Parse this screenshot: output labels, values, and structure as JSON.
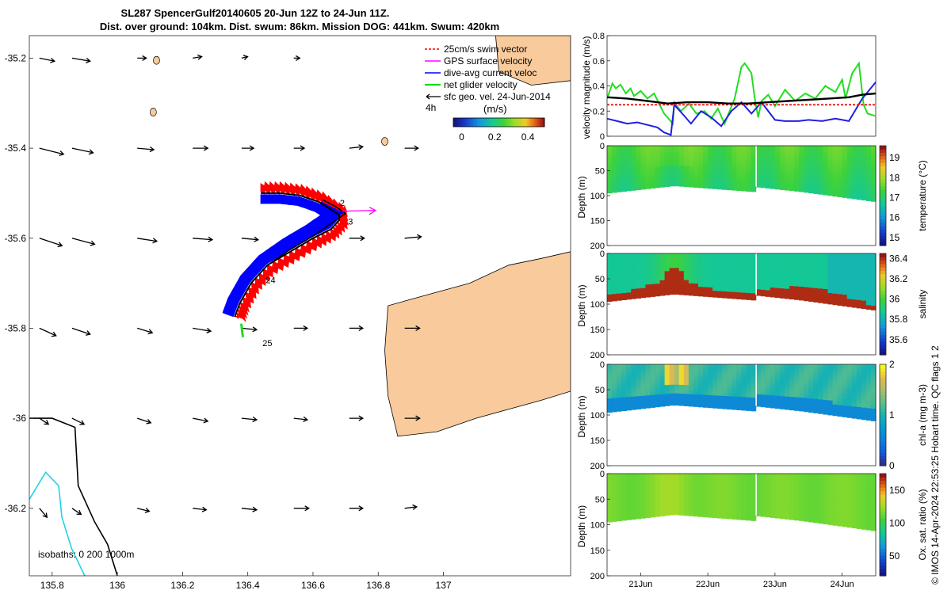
{
  "chart_data": [
    {
      "type": "map",
      "title_line1": "SL287 SpencerGulf20140605 20-Jun 12Z to 24-Jun 11Z.",
      "title_line2": "Dist. over ground: 104km. Dist. swum: 86km. Mission DOG: 441km. Swum: 420km",
      "x_ticks": [
        "135.8",
        "136",
        "136.2",
        "136.4",
        "136.6",
        "136.8",
        "137"
      ],
      "x_tick_values": [
        135.8,
        136.0,
        136.2,
        136.4,
        136.6,
        136.8,
        137.0
      ],
      "y_ticks": [
        "-35.2",
        "-35.4",
        "-35.6",
        "-35.8",
        "-36",
        "-36.2"
      ],
      "y_tick_values": [
        -35.2,
        -35.4,
        -35.6,
        -35.8,
        -36.0,
        -36.2
      ],
      "xlim": [
        135.73,
        137.39
      ],
      "ylim": [
        -36.35,
        -35.15
      ],
      "legend": [
        {
          "label": "25cm/s swim vector",
          "color": "#ff0000"
        },
        {
          "label": "GPS surface velocity",
          "color": "#ff00ff"
        },
        {
          "label": "dive-avg current veloc",
          "color": "#0000ff"
        },
        {
          "label": "net glider velocity",
          "color": "#00dd00"
        },
        {
          "label": "sfc geo. vel. 24-Jun-2014",
          "color": "#000000"
        }
      ],
      "legend_extra": "4h",
      "colorbar_label": "(m/s)",
      "colorbar_ticks": [
        "0",
        "0.2",
        "0.4"
      ],
      "colorbar_tick_values": [
        0,
        0.2,
        0.4
      ],
      "colorbar_range": [
        -0.05,
        0.5
      ],
      "isobath_text": "isobaths: 0   200  1000m",
      "day_labels": [
        {
          "text": "2",
          "lon": 136.69,
          "lat": -35.528
        },
        {
          "text": "3",
          "lon": 136.715,
          "lat": -35.57
        },
        {
          "text": "24",
          "lon": 136.47,
          "lat": -35.7
        },
        {
          "text": "25",
          "lon": 136.46,
          "lat": -35.84
        }
      ],
      "track": [
        [
          136.36,
          -35.775
        ],
        [
          136.375,
          -35.745
        ],
        [
          136.41,
          -35.7
        ],
        [
          136.46,
          -35.66
        ],
        [
          136.53,
          -35.63
        ],
        [
          136.6,
          -35.6
        ],
        [
          136.655,
          -35.58
        ],
        [
          136.68,
          -35.56
        ],
        [
          136.68,
          -35.548
        ],
        [
          136.62,
          -35.52
        ],
        [
          136.56,
          -35.505
        ],
        [
          136.5,
          -35.5
        ],
        [
          136.44,
          -35.5
        ]
      ],
      "track_recent": [
        [
          136.36,
          -35.775
        ],
        [
          136.375,
          -35.745
        ],
        [
          136.41,
          -35.7
        ],
        [
          136.46,
          -35.66
        ],
        [
          136.53,
          -35.625
        ],
        [
          136.6,
          -35.595
        ],
        [
          136.66,
          -35.565
        ],
        [
          136.7,
          -35.545
        ],
        [
          136.67,
          -35.53
        ],
        [
          136.63,
          -35.515
        ]
      ],
      "geo_vectors": {
        "lons": [
          135.8,
          135.9,
          136.1,
          136.27,
          136.42,
          136.58,
          136.75,
          136.92
        ],
        "lats": [
          -35.2,
          -35.4,
          -35.6,
          -35.8,
          -36.0,
          -36.2
        ],
        "u": [
          [
            0.1,
            0.12,
            0.06,
            0.06,
            0.04,
            0.04,
            0.0,
            0.0
          ],
          [
            0.16,
            0.14,
            0.11,
            0.1,
            0.08,
            0.07,
            0.09,
            0.09
          ],
          [
            0.15,
            0.15,
            0.13,
            0.13,
            0.11,
            0.1,
            0.1,
            0.11
          ],
          [
            0.11,
            0.12,
            0.1,
            0.12,
            0.1,
            0.09,
            0.09,
            0.1
          ],
          [
            0.06,
            0.08,
            0.09,
            0.1,
            0.1,
            0.09,
            0.09,
            0.1
          ],
          [
            0.05,
            0.06,
            0.08,
            0.09,
            0.1,
            0.1,
            0.09,
            0.08
          ]
        ],
        "v": [
          [
            -0.02,
            -0.02,
            0.0,
            0.01,
            0.01,
            0.0,
            0.0,
            0.0
          ],
          [
            -0.04,
            -0.03,
            -0.01,
            0.0,
            0.0,
            0.0,
            0.01,
            0.0
          ],
          [
            -0.05,
            -0.04,
            -0.02,
            -0.01,
            -0.01,
            0.0,
            0.0,
            0.01
          ],
          [
            -0.05,
            -0.04,
            -0.03,
            -0.02,
            -0.01,
            0.0,
            0.0,
            0.0
          ],
          [
            -0.04,
            -0.04,
            -0.03,
            -0.02,
            -0.01,
            -0.01,
            0.0,
            0.0
          ],
          [
            -0.06,
            -0.04,
            -0.02,
            -0.01,
            -0.01,
            0.0,
            0.0,
            0.01
          ]
        ]
      },
      "coastline": [
        [
          137.39,
          -35.63
        ],
        [
          137.3,
          -35.645
        ],
        [
          137.2,
          -35.66
        ],
        [
          137.08,
          -35.7
        ],
        [
          136.98,
          -35.72
        ],
        [
          136.88,
          -35.74
        ],
        [
          136.83,
          -35.75
        ],
        [
          136.82,
          -35.85
        ],
        [
          136.83,
          -35.95
        ],
        [
          136.86,
          -36.04
        ],
        [
          136.98,
          -36.03
        ],
        [
          137.1,
          -36.0
        ],
        [
          137.2,
          -35.98
        ],
        [
          137.3,
          -35.96
        ],
        [
          137.39,
          -35.94
        ]
      ],
      "coastline_ne": [
        [
          137.39,
          -35.15
        ],
        [
          137.16,
          -35.15
        ],
        [
          137.17,
          -35.23
        ],
        [
          137.27,
          -35.26
        ],
        [
          137.39,
          -35.25
        ]
      ],
      "isobath_200": [
        [
          135.73,
          -36.0
        ],
        [
          135.8,
          -36.0
        ],
        [
          135.87,
          -36.02
        ],
        [
          135.88,
          -36.15
        ],
        [
          135.93,
          -36.23
        ],
        [
          135.97,
          -36.28
        ],
        [
          136.0,
          -36.35
        ]
      ],
      "isobath_1000": [
        [
          135.73,
          -36.18
        ],
        [
          135.78,
          -36.12
        ],
        [
          135.82,
          -36.15
        ],
        [
          135.83,
          -36.22
        ],
        [
          135.86,
          -36.29
        ],
        [
          135.9,
          -36.35
        ]
      ]
    },
    {
      "type": "line",
      "ylabel": "velocity magnitude (m/s)",
      "ylim": [
        0,
        0.8
      ],
      "y_ticks": [
        0,
        0.2,
        0.4,
        0.6,
        0.8
      ],
      "y_tick_labels": [
        "0",
        "0.2",
        "0.4",
        "0.6",
        "0.8"
      ],
      "xlim": [
        20.5,
        24.5
      ],
      "series": [
        {
          "name": "net glider velocity",
          "color": "#22dd22",
          "x": [
            20.5,
            20.58,
            20.63,
            20.7,
            20.78,
            20.85,
            20.9,
            21.0,
            21.1,
            21.2,
            21.35,
            21.48,
            21.5,
            21.6,
            21.72,
            21.83,
            21.95,
            22.05,
            22.15,
            22.25,
            22.4,
            22.5,
            22.55,
            22.65,
            22.7,
            22.75,
            22.8,
            22.9,
            23.0,
            23.15,
            23.3,
            23.45,
            23.6,
            23.75,
            23.9,
            24.0,
            24.05,
            24.15,
            24.25,
            24.32,
            24.38,
            24.5
          ],
          "y": [
            0.3,
            0.42,
            0.38,
            0.41,
            0.34,
            0.38,
            0.32,
            0.36,
            0.3,
            0.34,
            0.18,
            0.1,
            0.27,
            0.2,
            0.26,
            0.18,
            0.2,
            0.14,
            0.22,
            0.1,
            0.3,
            0.55,
            0.58,
            0.5,
            0.3,
            0.15,
            0.28,
            0.33,
            0.24,
            0.37,
            0.28,
            0.34,
            0.3,
            0.4,
            0.35,
            0.45,
            0.3,
            0.5,
            0.58,
            0.25,
            0.18,
            0.16
          ]
        },
        {
          "name": "dive-avg current veloc",
          "color": "#2020e0",
          "x": [
            20.5,
            20.65,
            20.8,
            20.95,
            21.1,
            21.25,
            21.35,
            21.45,
            21.5,
            21.62,
            21.75,
            21.9,
            22.05,
            22.2,
            22.35,
            22.5,
            22.65,
            22.8,
            23.0,
            23.15,
            23.35,
            23.5,
            23.7,
            23.9,
            24.1,
            24.3,
            24.5
          ],
          "y": [
            0.14,
            0.12,
            0.1,
            0.11,
            0.09,
            0.07,
            0.03,
            0.01,
            0.25,
            0.18,
            0.1,
            0.2,
            0.15,
            0.08,
            0.2,
            0.27,
            0.18,
            0.27,
            0.13,
            0.12,
            0.12,
            0.13,
            0.12,
            0.14,
            0.12,
            0.3,
            0.43
          ]
        },
        {
          "name": "25cm/s swim vector",
          "color": "#ee2222",
          "dashed": true,
          "x": [
            20.5,
            24.5
          ],
          "y": [
            0.25,
            0.25
          ]
        },
        {
          "name": "GPS surface velocity",
          "color": "#000000",
          "x": [
            20.5,
            20.8,
            21.1,
            21.4,
            21.7,
            22.0,
            22.3,
            22.6,
            22.9,
            23.2,
            23.5,
            23.8,
            24.1,
            24.3,
            24.5
          ],
          "y": [
            0.31,
            0.3,
            0.28,
            0.26,
            0.27,
            0.27,
            0.26,
            0.26,
            0.27,
            0.28,
            0.29,
            0.3,
            0.31,
            0.33,
            0.34
          ]
        }
      ]
    },
    {
      "type": "heatmap",
      "ylabel": "Depth (m)",
      "clabel": "temperature (°C)",
      "cticks": [
        "15",
        "16",
        "17",
        "18",
        "19"
      ],
      "ctick_values": [
        15,
        16,
        17,
        18,
        19
      ],
      "crange": [
        14.6,
        19.6
      ],
      "y_ticks": [
        "0",
        "50",
        "100",
        "150",
        "200"
      ],
      "y_tick_values": [
        0,
        50,
        100,
        150,
        200
      ]
    },
    {
      "type": "heatmap",
      "ylabel": "Depth (m)",
      "clabel": "salinity",
      "cticks": [
        "35.6",
        "35.8",
        "36",
        "36.2",
        "36.4"
      ],
      "ctick_values": [
        35.6,
        35.8,
        36.0,
        36.2,
        36.4
      ],
      "crange": [
        35.45,
        36.45
      ],
      "y_ticks": [
        "0",
        "50",
        "100",
        "150",
        "200"
      ],
      "y_tick_values": [
        0,
        50,
        100,
        150,
        200
      ]
    },
    {
      "type": "heatmap",
      "ylabel": "Depth (m)",
      "clabel": "chl-a (mg m-3)",
      "cticks": [
        "0",
        "1",
        "2"
      ],
      "ctick_values": [
        0,
        1,
        2
      ],
      "crange": [
        0,
        2
      ],
      "y_ticks": [
        "0",
        "50",
        "100",
        "150",
        "200"
      ],
      "y_tick_values": [
        0,
        50,
        100,
        150,
        200
      ]
    },
    {
      "type": "heatmap",
      "ylabel": "Depth (m)",
      "clabel": "Ox. sat. ratio (%)",
      "cticks": [
        "50",
        "100",
        "150"
      ],
      "ctick_values": [
        50,
        100,
        150
      ],
      "crange": [
        20,
        175
      ],
      "y_ticks": [
        "0",
        "50",
        "100",
        "150",
        "200"
      ],
      "y_tick_values": [
        0,
        50,
        100,
        150,
        200
      ],
      "x_ticks": [
        "21Jun",
        "22Jun",
        "23Jun",
        "24Jun"
      ],
      "x_tick_values": [
        21,
        22,
        23,
        24
      ]
    }
  ],
  "credit": "© IMOS 14-Apr-2024 22:53:25 Hobart time. QC flags 1  2"
}
